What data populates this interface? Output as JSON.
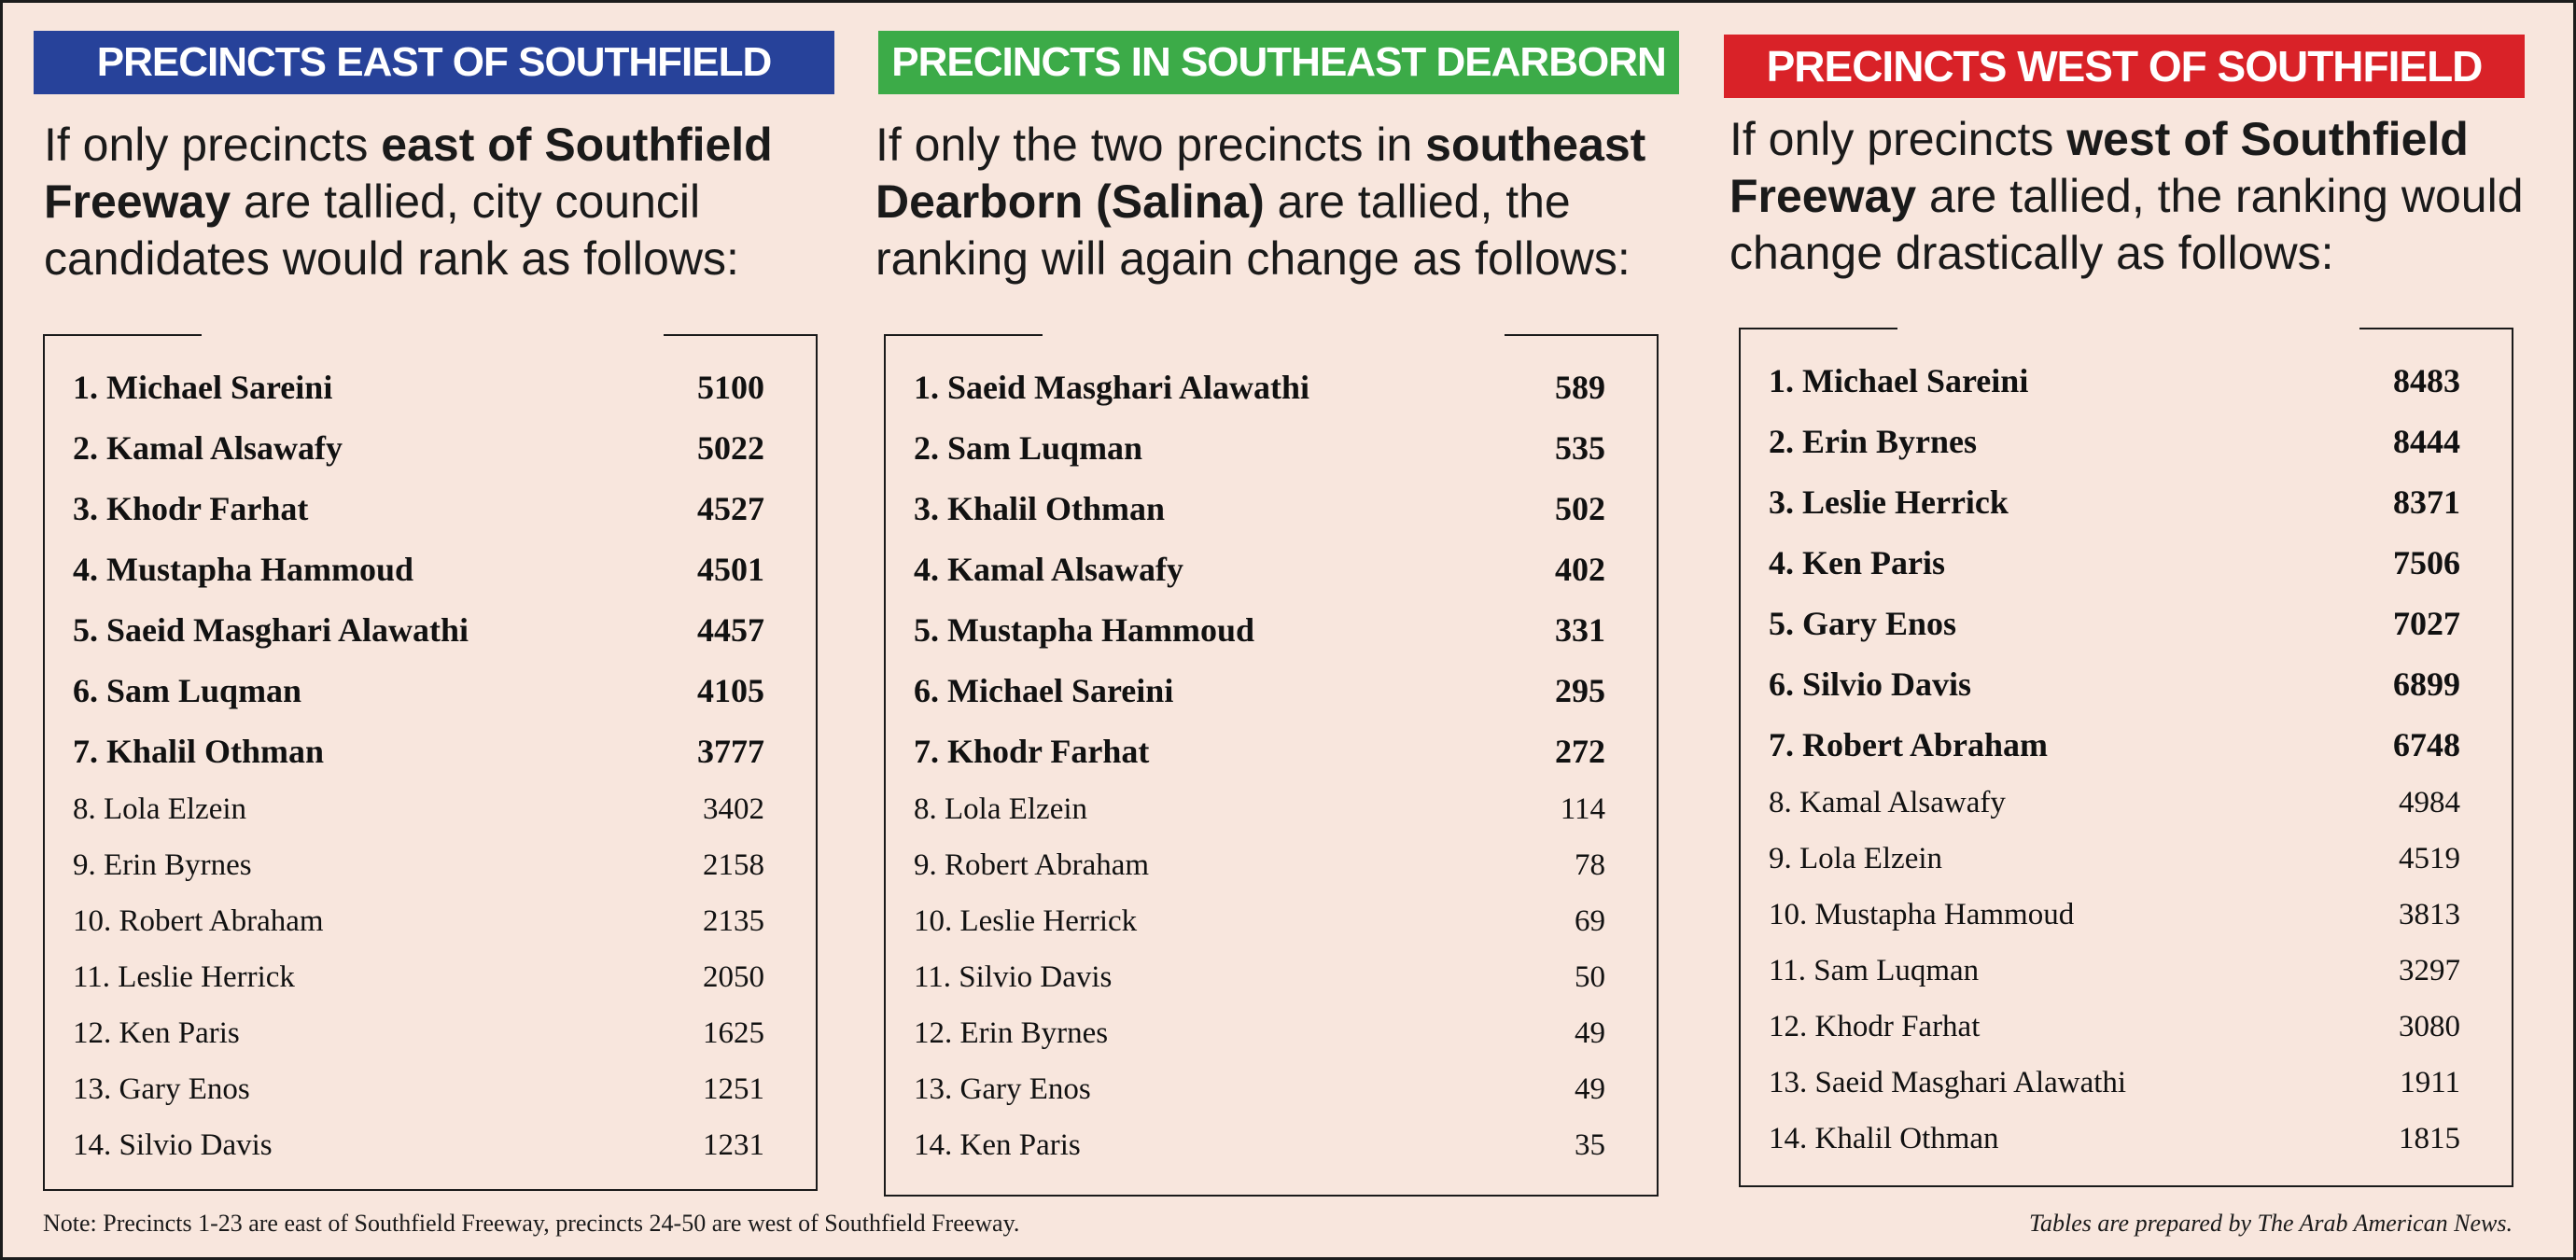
{
  "colors": {
    "background": "#f8e6dd",
    "east_banner": "#27429a",
    "southeast_banner": "#3cab48",
    "west_banner": "#d92228"
  },
  "panels": [
    {
      "banner": "PRECINCTS EAST OF SOUTHFIELD",
      "intro": {
        "pre": "If only precincts ",
        "bold": "east of Southfield Freeway",
        "post": " are tallied, city council candidates would rank as follows:"
      },
      "rows": [
        {
          "rank_name": "1. Michael Sareini",
          "votes": "5100"
        },
        {
          "rank_name": "2. Kamal Alsawafy",
          "votes": "5022"
        },
        {
          "rank_name": "3. Khodr Farhat",
          "votes": "4527"
        },
        {
          "rank_name": "4. Mustapha Hammoud",
          "votes": "4501"
        },
        {
          "rank_name": "5. Saeid Masghari Alawathi",
          "votes": "4457"
        },
        {
          "rank_name": "6. Sam Luqman",
          "votes": "4105"
        },
        {
          "rank_name": "7. Khalil Othman",
          "votes": "3777"
        },
        {
          "rank_name": "8. Lola Elzein",
          "votes": "3402"
        },
        {
          "rank_name": "9. Erin Byrnes",
          "votes": "2158"
        },
        {
          "rank_name": "10. Robert Abraham",
          "votes": "2135"
        },
        {
          "rank_name": "11. Leslie Herrick",
          "votes": "2050"
        },
        {
          "rank_name": "12. Ken Paris",
          "votes": "1625"
        },
        {
          "rank_name": "13. Gary Enos",
          "votes": "1251"
        },
        {
          "rank_name": "14. Silvio Davis",
          "votes": "1231"
        }
      ]
    },
    {
      "banner": "PRECINCTS IN SOUTHEAST DEARBORN",
      "intro": {
        "pre": "If only the two precincts in ",
        "bold": "southeast Dearborn (Salina)",
        "post": " are tallied, the ranking will again change as follows:"
      },
      "rows": [
        {
          "rank_name": "1. Saeid Masghari Alawathi",
          "votes": "589"
        },
        {
          "rank_name": "2. Sam Luqman",
          "votes": "535"
        },
        {
          "rank_name": "3. Khalil Othman",
          "votes": "502"
        },
        {
          "rank_name": "4. Kamal Alsawafy",
          "votes": "402"
        },
        {
          "rank_name": "5. Mustapha Hammoud",
          "votes": "331"
        },
        {
          "rank_name": "6. Michael Sareini",
          "votes": "295"
        },
        {
          "rank_name": "7. Khodr Farhat",
          "votes": "272"
        },
        {
          "rank_name": "8. Lola Elzein",
          "votes": "114"
        },
        {
          "rank_name": "9. Robert Abraham",
          "votes": "78"
        },
        {
          "rank_name": "10. Leslie Herrick",
          "votes": "69"
        },
        {
          "rank_name": "11. Silvio Davis",
          "votes": "50"
        },
        {
          "rank_name": "12. Erin Byrnes",
          "votes": "49"
        },
        {
          "rank_name": "13. Gary Enos",
          "votes": "49"
        },
        {
          "rank_name": "14. Ken Paris",
          "votes": "35"
        }
      ]
    },
    {
      "banner": "PRECINCTS WEST OF SOUTHFIELD",
      "intro": {
        "pre": "If only precincts ",
        "bold": "west of Southfield Freeway",
        "post": " are tallied, the ranking would change drastically as follows:"
      },
      "rows": [
        {
          "rank_name": "1. Michael Sareini",
          "votes": "8483"
        },
        {
          "rank_name": "2. Erin Byrnes",
          "votes": "8444"
        },
        {
          "rank_name": "3. Leslie Herrick",
          "votes": "8371"
        },
        {
          "rank_name": "4. Ken Paris",
          "votes": "7506"
        },
        {
          "rank_name": "5. Gary Enos",
          "votes": "7027"
        },
        {
          "rank_name": "6. Silvio Davis",
          "votes": "6899"
        },
        {
          "rank_name": "7. Robert Abraham",
          "votes": "6748"
        },
        {
          "rank_name": "8. Kamal Alsawafy",
          "votes": "4984"
        },
        {
          "rank_name": "9. Lola Elzein",
          "votes": "4519"
        },
        {
          "rank_name": "10. Mustapha Hammoud",
          "votes": "3813"
        },
        {
          "rank_name": "11. Sam Luqman",
          "votes": "3297"
        },
        {
          "rank_name": "12. Khodr Farhat",
          "votes": "3080"
        },
        {
          "rank_name": "13. Saeid Masghari Alawathi",
          "votes": "1911"
        },
        {
          "rank_name": "14. Khalil Othman",
          "votes": "1815"
        }
      ]
    }
  ],
  "footer": {
    "note": "Note: Precincts 1-23 are east of Southfield Freeway, precincts 24-50 are west of Southfield Freeway.",
    "credit": "Tables are prepared by The Arab American News."
  }
}
